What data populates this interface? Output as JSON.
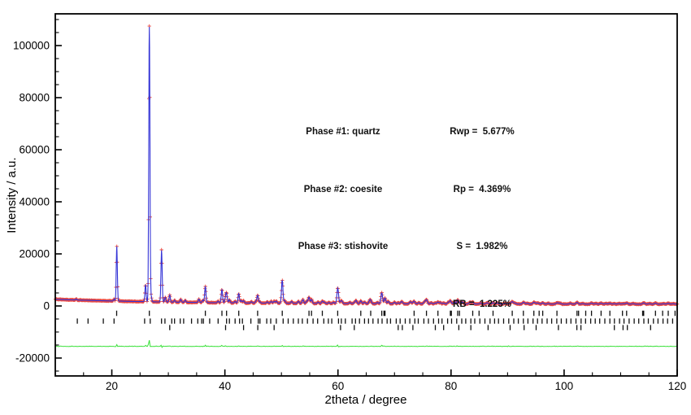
{
  "axes": {
    "xlabel": "2theta / degree",
    "ylabel": "Intensity / a.u."
  },
  "annotations": {
    "phase_labels": [
      "Phase #1: quartz",
      "Phase #2: coesite",
      "Phase #3: stishovite"
    ],
    "r_values": [
      "Rwp =  5.677%",
      "Rp =  4.369%",
      "S =  1.982%",
      "RB =  1.225%"
    ]
  },
  "chart_data": {
    "type": "scatter",
    "subtype": "rietveld-refinement-powder-xrd",
    "title": "",
    "xlabel": "2theta / degree",
    "ylabel": "Intensity / a.u.",
    "xlim": [
      10,
      120
    ],
    "ylim": [
      -26900,
      112200
    ],
    "grid": false,
    "legend": "none",
    "x_major_ticks": [
      20,
      40,
      60,
      80,
      100,
      120
    ],
    "x_tick_labels": [
      "20",
      "40",
      "60",
      "80",
      "100",
      "120"
    ],
    "x_minor_step": 5,
    "y_major_ticks": [
      -20000,
      0,
      20000,
      40000,
      60000,
      80000,
      100000
    ],
    "y_tick_labels": [
      "-20000",
      "0",
      "20000",
      "40000",
      "60000",
      "80000",
      "100000"
    ],
    "y_minor_step": 5000,
    "series": [
      {
        "name": "observed",
        "marker": "plus",
        "color": "#e8352c"
      },
      {
        "name": "calculated",
        "marker": "line",
        "color": "#3434d6"
      },
      {
        "name": "difference",
        "marker": "line",
        "color": "#38e138",
        "baseline_offset": -15500
      }
    ],
    "background_curve": {
      "base": 650,
      "amplitude": 1900,
      "decay_deg": 25
    },
    "peak_width_deg": {
      "base": 0.085,
      "slope": 0.0011
    },
    "noise": {
      "seed": 987654321,
      "base": 135,
      "proportional": 0.012
    },
    "phases": [
      {
        "name": "quartz",
        "bragg_row_offset": -2800,
        "peaks": [
          [
            20.88,
            21000
          ],
          [
            26.64,
            105500
          ],
          [
            36.54,
            6200
          ],
          [
            39.47,
            5000
          ],
          [
            40.3,
            3200
          ],
          [
            42.45,
            3600
          ],
          [
            45.79,
            2600
          ],
          [
            50.14,
            8800
          ],
          [
            54.87,
            2400
          ],
          [
            55.33,
            1500
          ],
          [
            57.24,
            900
          ],
          [
            59.96,
            6000
          ],
          [
            64.04,
            1100
          ],
          [
            65.79,
            1000
          ],
          [
            67.74,
            4200
          ],
          [
            68.32,
            2200
          ],
          [
            73.47,
            900
          ],
          [
            75.66,
            1600
          ],
          [
            77.68,
            700
          ],
          [
            79.88,
            1200
          ],
          [
            81.17,
            1400
          ],
          [
            83.84,
            700
          ],
          [
            87.43,
            500
          ],
          [
            90.83,
            900
          ],
          [
            92.8,
            500
          ],
          [
            94.65,
            700
          ],
          [
            96.22,
            500
          ],
          [
            98.73,
            450
          ],
          [
            102.29,
            450
          ],
          [
            104.85,
            400
          ],
          [
            106.54,
            400
          ],
          [
            108.09,
            350
          ],
          [
            111.06,
            450
          ],
          [
            114.08,
            500
          ],
          [
            116.16,
            400
          ],
          [
            118.42,
            350
          ]
        ],
        "bragg_ticks": [
          20.86,
          26.64,
          36.54,
          39.47,
          40.3,
          42.45,
          45.79,
          50.14,
          54.87,
          55.33,
          57.24,
          59.96,
          64.04,
          65.79,
          67.74,
          68.14,
          68.32,
          73.47,
          75.66,
          77.68,
          79.88,
          80.05,
          81.17,
          81.49,
          83.84,
          84.96,
          87.43,
          90.83,
          92.8,
          94.65,
          95.59,
          96.22,
          98.73,
          102.29,
          102.56,
          103.83,
          104.85,
          106.54,
          108.09,
          110.33,
          111.06,
          113.89,
          114.08,
          116.16,
          117.42,
          118.42,
          119.62
        ]
      },
      {
        "name": "coesite",
        "bragg_row_offset": -5800,
        "peaks": [
          [
            13.7,
            400
          ],
          [
            20.4,
            700
          ],
          [
            25.96,
            6500
          ],
          [
            26.95,
            2000
          ],
          [
            28.8,
            19800
          ],
          [
            29.45,
            1800
          ],
          [
            31.1,
            700
          ],
          [
            32.2,
            1100
          ],
          [
            33.0,
            800
          ],
          [
            35.4,
            1300
          ],
          [
            36.1,
            900
          ],
          [
            38.8,
            600
          ],
          [
            40.8,
            1200
          ],
          [
            41.8,
            600
          ],
          [
            42.9,
            900
          ],
          [
            44.7,
            500
          ],
          [
            45.5,
            600
          ],
          [
            46.2,
            500
          ],
          [
            47.5,
            500
          ],
          [
            48.2,
            700
          ],
          [
            49.1,
            800
          ],
          [
            50.6,
            1000
          ],
          [
            51.8,
            700
          ],
          [
            53.0,
            800
          ],
          [
            53.8,
            1500
          ],
          [
            54.5,
            900
          ],
          [
            56.5,
            500
          ],
          [
            57.6,
            500
          ],
          [
            58.4,
            400
          ],
          [
            59.2,
            500
          ],
          [
            60.7,
            900
          ],
          [
            62.1,
            500
          ],
          [
            63.2,
            1200
          ],
          [
            64.7,
            600
          ],
          [
            65.6,
            1000
          ],
          [
            67.0,
            500
          ],
          [
            68.9,
            900
          ],
          [
            70.0,
            600
          ],
          [
            71.2,
            600
          ],
          [
            72.8,
            800
          ],
          [
            74.3,
            500
          ],
          [
            75.3,
            800
          ],
          [
            76.5,
            400
          ],
          [
            78.1,
            500
          ],
          [
            79.5,
            600
          ],
          [
            80.6,
            900
          ],
          [
            82.0,
            800
          ],
          [
            83.3,
            500
          ],
          [
            85.2,
            400
          ],
          [
            86.3,
            350
          ],
          [
            88.2,
            400
          ],
          [
            89.6,
            300
          ],
          [
            91.3,
            400
          ],
          [
            93.5,
            300
          ],
          [
            95.4,
            350
          ],
          [
            97.2,
            300
          ],
          [
            99.3,
            300
          ],
          [
            101.1,
            300
          ],
          [
            103.3,
            250
          ],
          [
            105.6,
            250
          ],
          [
            107.4,
            250
          ],
          [
            109.7,
            250
          ],
          [
            112.2,
            250
          ],
          [
            115.1,
            250
          ],
          [
            117.6,
            200
          ],
          [
            119.3,
            200
          ]
        ],
        "bragg_ticks": [
          13.9,
          15.8,
          18.5,
          20.4,
          25.8,
          26.8,
          28.8,
          29.4,
          30.6,
          31.1,
          32.1,
          32.7,
          34.1,
          35.2,
          35.9,
          36.2,
          37.3,
          38.8,
          40.3,
          40.8,
          41.8,
          42.6,
          43.1,
          44.6,
          45.9,
          46.2,
          47.4,
          48.1,
          49.1,
          50.3,
          51.2,
          52.1,
          53.0,
          53.7,
          54.6,
          55.6,
          56.4,
          57.5,
          58.3,
          58.9,
          60.1,
          60.6,
          61.3,
          62.5,
          63.1,
          63.8,
          64.7,
          65.4,
          66.2,
          67.1,
          67.8,
          68.7,
          69.3,
          70.3,
          71.0,
          71.9,
          72.7,
          73.6,
          74.2,
          75.2,
          76.0,
          76.9,
          77.8,
          78.4,
          79.4,
          80.1,
          81.0,
          81.9,
          82.6,
          83.5,
          84.2,
          85.1,
          86.0,
          86.9,
          87.7,
          88.4,
          89.3,
          90.2,
          91.1,
          91.9,
          92.8,
          93.6,
          94.5,
          95.3,
          96.1,
          97.0,
          97.8,
          98.7,
          99.5,
          100.4,
          101.2,
          102.1,
          103.0,
          103.8,
          104.7,
          105.5,
          106.3,
          107.2,
          108.1,
          108.9,
          109.8,
          110.6,
          111.5,
          112.4,
          113.2,
          114.1,
          114.9,
          115.8,
          116.6,
          117.5,
          118.3,
          119.2
        ]
      },
      {
        "name": "stishovite",
        "bragg_row_offset": -8300,
        "peaks": [
          [
            30.24,
            2700
          ],
          [
            40.12,
            1900
          ],
          [
            43.3,
            900
          ],
          [
            45.82,
            400
          ],
          [
            48.71,
            700
          ],
          [
            60.46,
            700
          ],
          [
            62.88,
            400
          ],
          [
            70.65,
            350
          ],
          [
            71.38,
            450
          ],
          [
            73.25,
            300
          ],
          [
            77.22,
            350
          ],
          [
            78.69,
            350
          ],
          [
            81.38,
            350
          ],
          [
            83.51,
            250
          ],
          [
            86.55,
            250
          ],
          [
            90.45,
            300
          ],
          [
            92.93,
            250
          ],
          [
            95.05,
            250
          ],
          [
            98.99,
            200
          ],
          [
            102.26,
            200
          ],
          [
            108.88,
            200
          ],
          [
            110.42,
            200
          ]
        ],
        "bragg_ticks": [
          30.24,
          40.12,
          43.3,
          45.82,
          48.71,
          60.46,
          62.88,
          70.65,
          71.38,
          73.25,
          77.22,
          78.69,
          81.38,
          83.51,
          86.55,
          90.45,
          92.93,
          95.05,
          98.99,
          102.26,
          102.97,
          108.88,
          110.42,
          111.18,
          115.3
        ]
      }
    ],
    "difference_spikes": [
      [
        26.55,
        2600
      ],
      [
        26.63,
        4600
      ],
      [
        26.71,
        -8000
      ],
      [
        26.8,
        1600
      ],
      [
        20.88,
        800
      ],
      [
        20.96,
        -500
      ],
      [
        25.96,
        500
      ],
      [
        28.78,
        900
      ],
      [
        28.9,
        -600
      ],
      [
        30.24,
        300
      ],
      [
        36.54,
        400
      ],
      [
        39.47,
        350
      ],
      [
        40.12,
        300
      ],
      [
        42.45,
        300
      ],
      [
        45.79,
        250
      ],
      [
        50.12,
        600
      ],
      [
        50.22,
        -400
      ],
      [
        53.9,
        300
      ],
      [
        59.94,
        450
      ],
      [
        60.06,
        -300
      ],
      [
        64.0,
        200
      ],
      [
        67.8,
        400
      ],
      [
        68.3,
        300
      ],
      [
        75.7,
        250
      ],
      [
        81.0,
        250
      ],
      [
        90.2,
        200
      ]
    ]
  }
}
